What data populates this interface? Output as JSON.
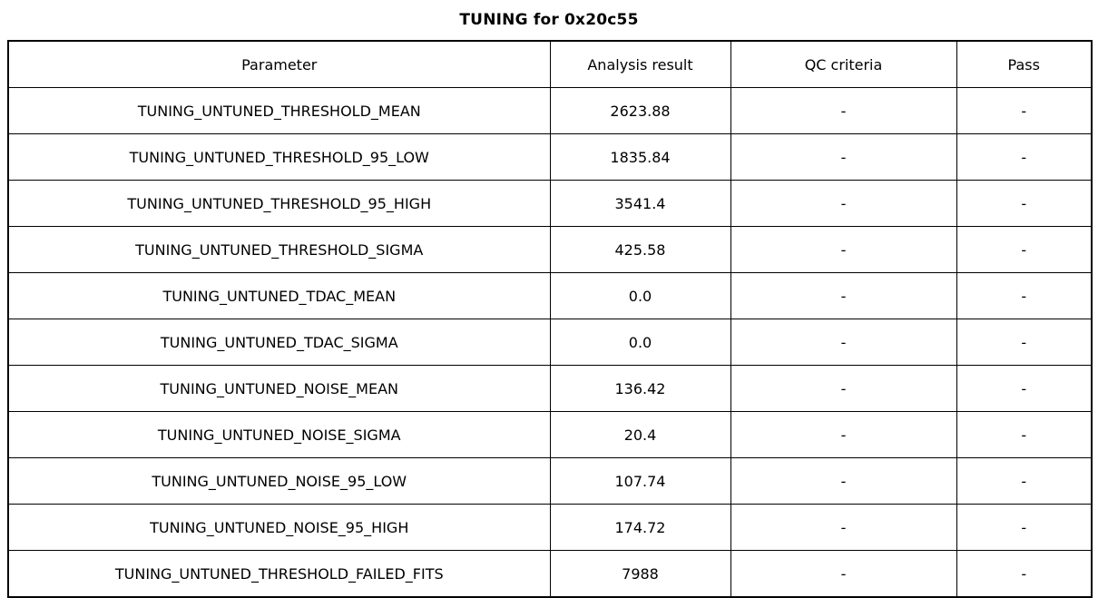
{
  "page": {
    "title": "TUNING for 0x20c55"
  },
  "colors": {
    "background": "#ffffff",
    "text": "#000000",
    "border": "#000000"
  },
  "chart_data": {
    "type": "table",
    "title": "TUNING for 0x20c55",
    "columns": [
      "Parameter",
      "Analysis result",
      "QC criteria",
      "Pass"
    ],
    "rows": [
      [
        "TUNING_UNTUNED_THRESHOLD_MEAN",
        "2623.88",
        "-",
        "-"
      ],
      [
        "TUNING_UNTUNED_THRESHOLD_95_LOW",
        "1835.84",
        "-",
        "-"
      ],
      [
        "TUNING_UNTUNED_THRESHOLD_95_HIGH",
        "3541.4",
        "-",
        "-"
      ],
      [
        "TUNING_UNTUNED_THRESHOLD_SIGMA",
        "425.58",
        "-",
        "-"
      ],
      [
        "TUNING_UNTUNED_TDAC_MEAN",
        "0.0",
        "-",
        "-"
      ],
      [
        "TUNING_UNTUNED_TDAC_SIGMA",
        "0.0",
        "-",
        "-"
      ],
      [
        "TUNING_UNTUNED_NOISE_MEAN",
        "136.42",
        "-",
        "-"
      ],
      [
        "TUNING_UNTUNED_NOISE_SIGMA",
        "20.4",
        "-",
        "-"
      ],
      [
        "TUNING_UNTUNED_NOISE_95_LOW",
        "107.74",
        "-",
        "-"
      ],
      [
        "TUNING_UNTUNED_NOISE_95_HIGH",
        "174.72",
        "-",
        "-"
      ],
      [
        "TUNING_UNTUNED_THRESHOLD_FAILED_FITS",
        "7988",
        "-",
        "-"
      ]
    ]
  }
}
